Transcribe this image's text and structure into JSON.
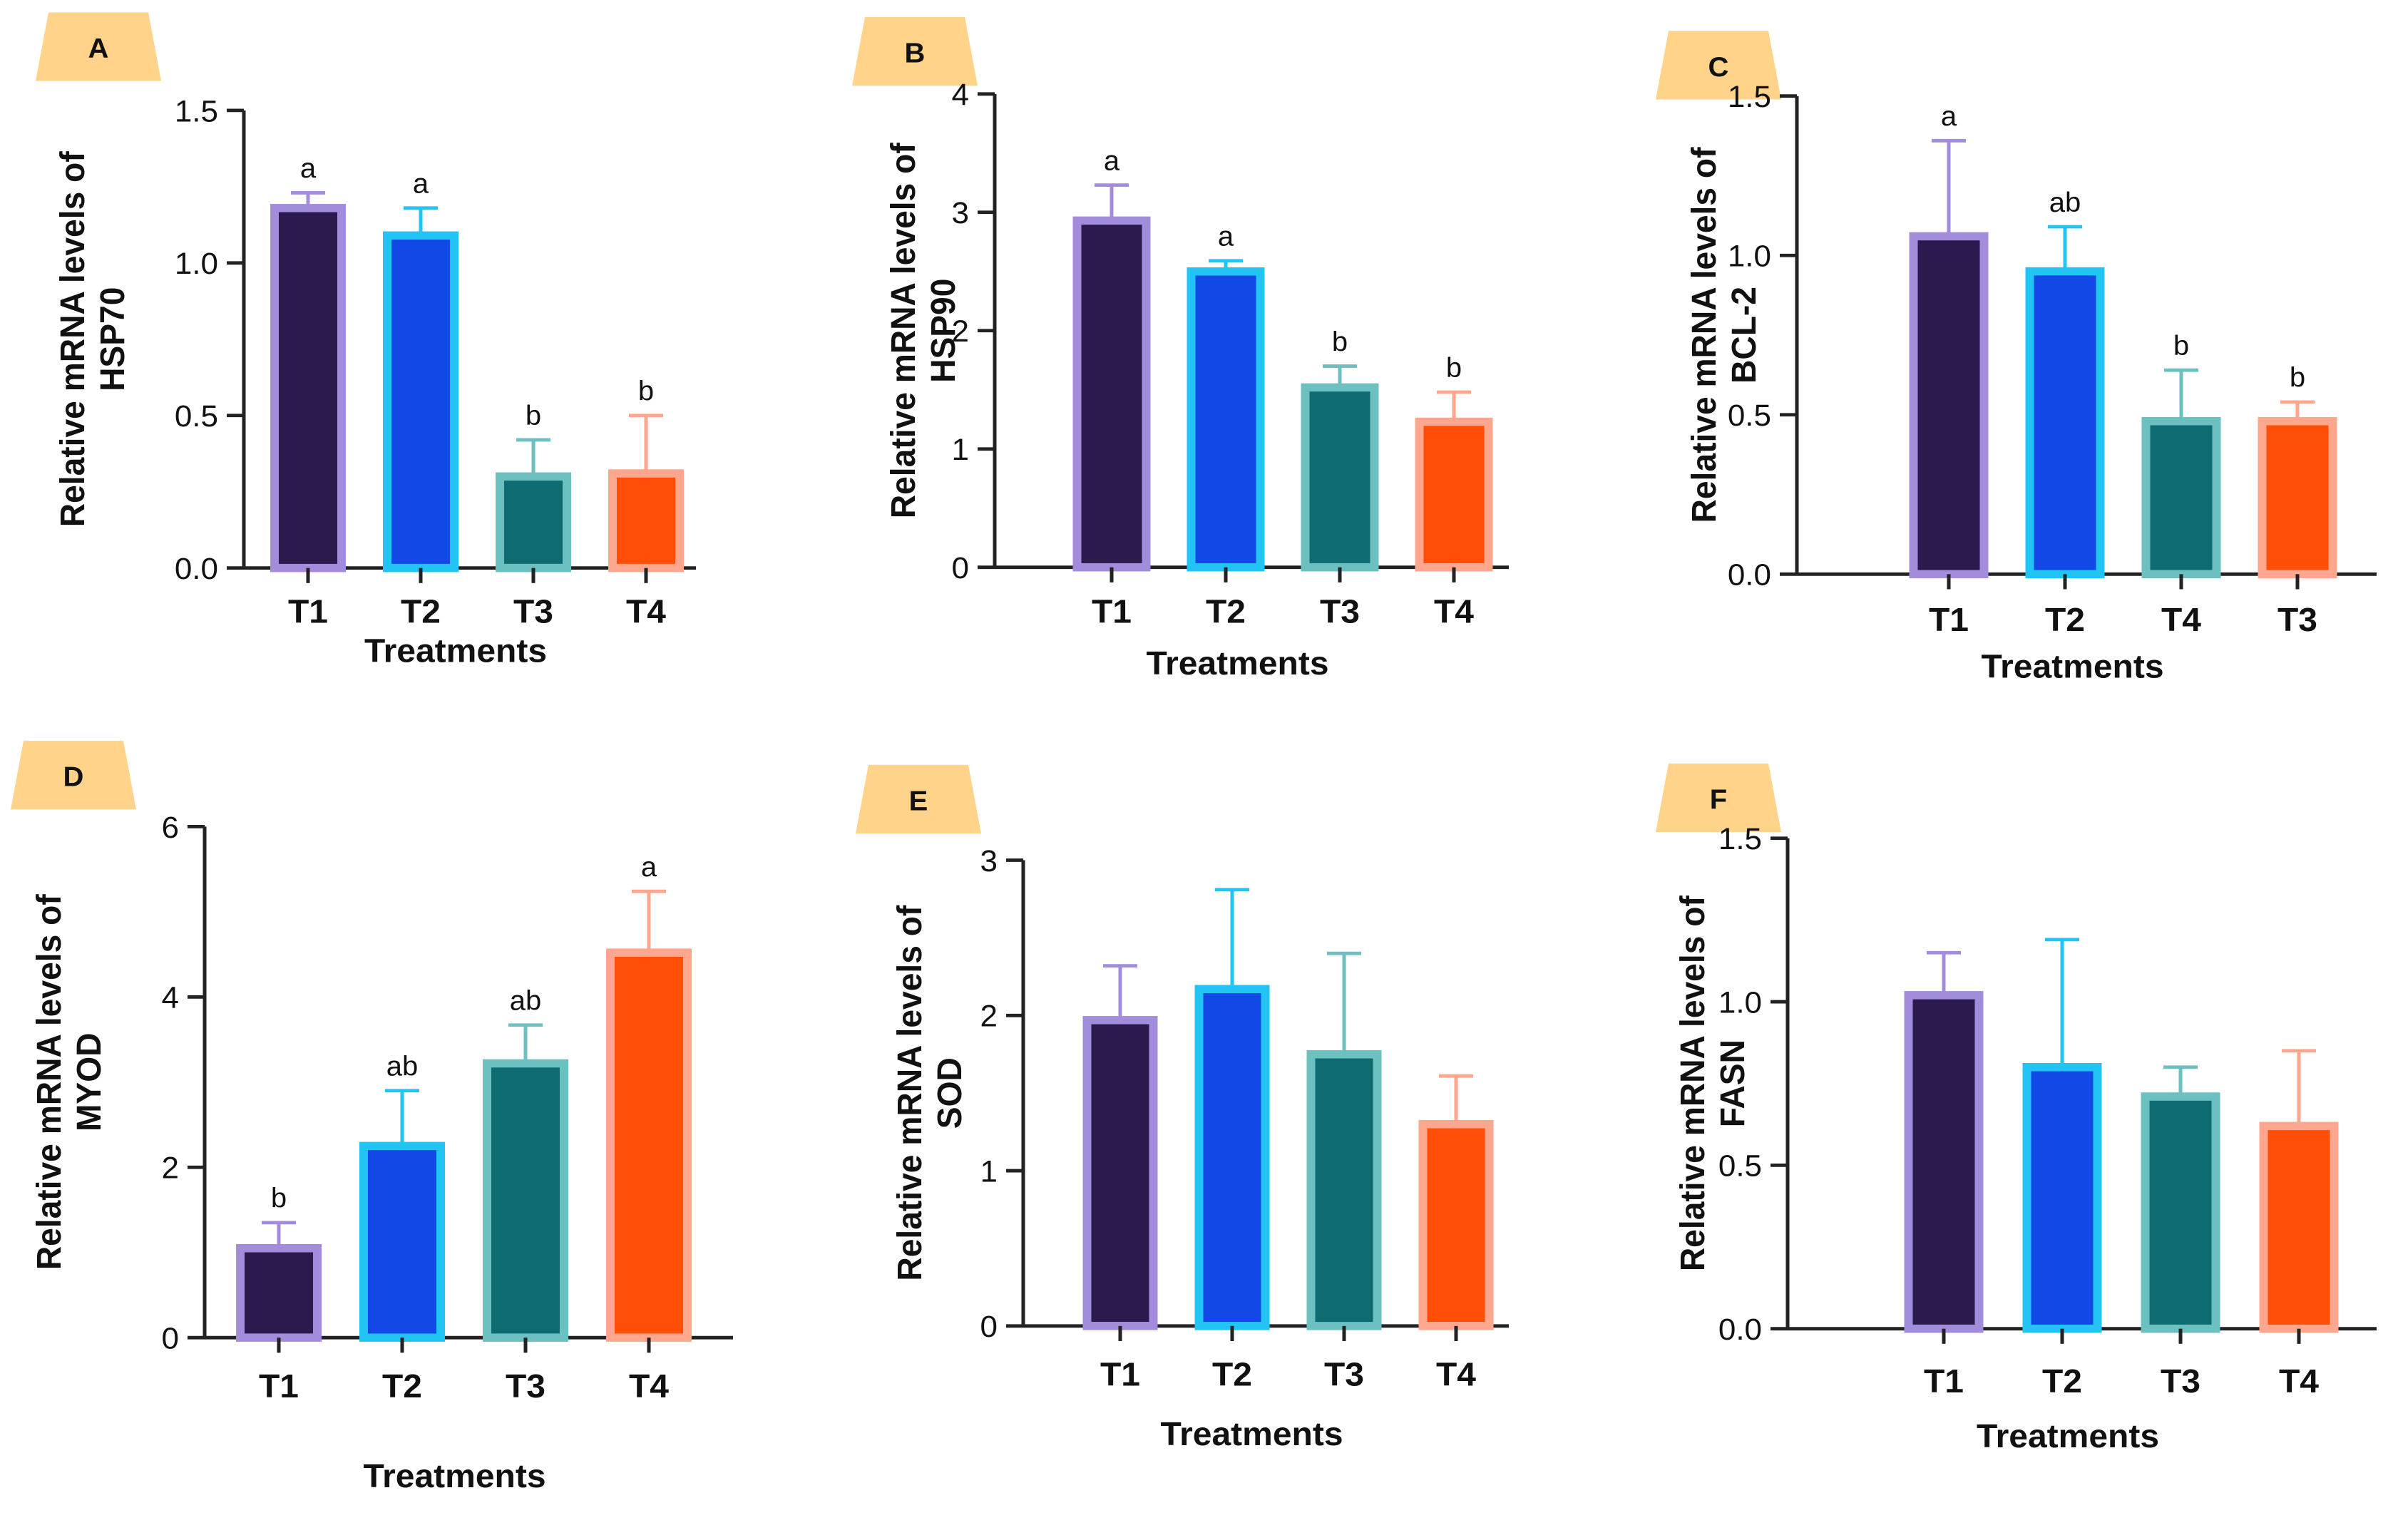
{
  "figure": {
    "xlabel_shared": "Treatments"
  },
  "chart_data": [
    {
      "panel": "A",
      "type": "bar",
      "title": "",
      "ylabel_line1": "Relative mRNA levels of",
      "ylabel_line2": "HSP70",
      "xlabel": "Treatments",
      "categories": [
        "T1",
        "T2",
        "T3",
        "T4"
      ],
      "values": [
        1.18,
        1.09,
        0.3,
        0.31
      ],
      "errors": [
        0.05,
        0.09,
        0.12,
        0.19
      ],
      "letters": [
        "a",
        "a",
        "b",
        "b"
      ],
      "ylim": [
        0,
        1.5
      ],
      "yticks": [
        "0.0",
        "0.5",
        "1.0",
        "1.5"
      ],
      "ytick_values": [
        0,
        0.5,
        1.0,
        1.5
      ],
      "fills": [
        "#2a1a4e",
        "#1148e6",
        "#0f6b72",
        "#ff4e08"
      ],
      "edges": [
        "#a48cdc",
        "#22c4f4",
        "#6cc0c0",
        "#ffa78e"
      ]
    },
    {
      "panel": "B",
      "type": "bar",
      "title": "",
      "ylabel_line1": "Relative mRNA levels of",
      "ylabel_line2": "HSP90",
      "xlabel": "Treatments",
      "categories": [
        "T1",
        "T2",
        "T3",
        "T4"
      ],
      "values": [
        2.93,
        2.5,
        1.52,
        1.23
      ],
      "errors": [
        0.3,
        0.09,
        0.18,
        0.25
      ],
      "letters": [
        "a",
        "a",
        "b",
        "b"
      ],
      "ylim": [
        0,
        4
      ],
      "yticks": [
        "0",
        "1",
        "2",
        "3",
        "4"
      ],
      "ytick_values": [
        0,
        1,
        2,
        3,
        4
      ],
      "fills": [
        "#2a1a4e",
        "#1148e6",
        "#0f6b72",
        "#ff4e08"
      ],
      "edges": [
        "#a48cdc",
        "#22c4f4",
        "#6cc0c0",
        "#ffa78e"
      ]
    },
    {
      "panel": "C",
      "type": "bar",
      "title": "",
      "ylabel_line1": "Relative mRNA levels of",
      "ylabel_line2": "BCL-2",
      "xlabel": "Treatments",
      "categories": [
        "T1",
        "T2",
        "T4",
        "T3"
      ],
      "values": [
        1.06,
        0.95,
        0.48,
        0.48
      ],
      "errors": [
        0.3,
        0.14,
        0.16,
        0.06
      ],
      "letters": [
        "a",
        "ab",
        "b",
        "b"
      ],
      "ylim": [
        0,
        1.5
      ],
      "yticks": [
        "0.0",
        "0.5",
        "1.0",
        "1.5"
      ],
      "ytick_values": [
        0,
        0.5,
        1.0,
        1.5
      ],
      "fills": [
        "#2a1a4e",
        "#1148e6",
        "#0f6b72",
        "#ff4e08"
      ],
      "edges": [
        "#a48cdc",
        "#22c4f4",
        "#6cc0c0",
        "#ffa78e"
      ]
    },
    {
      "panel": "D",
      "type": "bar",
      "title": "",
      "ylabel_line1": "Relative mRNA levels of",
      "ylabel_line2": "MYOD",
      "xlabel": "Treatments",
      "categories": [
        "T1",
        "T2",
        "T3",
        "T4"
      ],
      "values": [
        1.05,
        2.25,
        3.22,
        4.52
      ],
      "errors": [
        0.3,
        0.65,
        0.45,
        0.72
      ],
      "letters": [
        "b",
        "ab",
        "ab",
        "a"
      ],
      "ylim": [
        0,
        6
      ],
      "yticks": [
        "0",
        "2",
        "4",
        "6"
      ],
      "ytick_values": [
        0,
        2,
        4,
        6
      ],
      "fills": [
        "#2a1a4e",
        "#1148e6",
        "#0f6b72",
        "#ff4e08"
      ],
      "edges": [
        "#a48cdc",
        "#22c4f4",
        "#6cc0c0",
        "#ffa78e"
      ]
    },
    {
      "panel": "E",
      "type": "bar",
      "title": "",
      "ylabel_line1": "Relative mRNA levels of",
      "ylabel_line2": "SOD",
      "xlabel": "Treatments",
      "categories": [
        "T1",
        "T2",
        "T3",
        "T4"
      ],
      "values": [
        1.97,
        2.17,
        1.75,
        1.3
      ],
      "errors": [
        0.35,
        0.64,
        0.65,
        0.31
      ],
      "letters": [
        "",
        "",
        "",
        ""
      ],
      "ylim": [
        0,
        3
      ],
      "yticks": [
        "0",
        "1",
        "2",
        "3"
      ],
      "ytick_values": [
        0,
        1,
        2,
        3
      ],
      "fills": [
        "#2a1a4e",
        "#1148e6",
        "#0f6b72",
        "#ff4e08"
      ],
      "edges": [
        "#a48cdc",
        "#22c4f4",
        "#6cc0c0",
        "#ffa78e"
      ]
    },
    {
      "panel": "F",
      "type": "bar",
      "title": "",
      "ylabel_line1": "Relative mRNA levels of",
      "ylabel_line2": "FASN",
      "xlabel": "Treatments",
      "categories": [
        "T1",
        "T2",
        "T3",
        "T4"
      ],
      "values": [
        1.02,
        0.8,
        0.71,
        0.62
      ],
      "errors": [
        0.13,
        0.39,
        0.09,
        0.23
      ],
      "letters": [
        "",
        "",
        "",
        ""
      ],
      "ylim": [
        0,
        1.5
      ],
      "yticks": [
        "0.0",
        "0.5",
        "1.0",
        "1.5"
      ],
      "ytick_values": [
        0,
        0.5,
        1.0,
        1.5
      ],
      "fills": [
        "#2a1a4e",
        "#1148e6",
        "#0f6b72",
        "#ff4e08"
      ],
      "edges": [
        "#a48cdc",
        "#22c4f4",
        "#6cc0c0",
        "#ffa78e"
      ]
    }
  ]
}
